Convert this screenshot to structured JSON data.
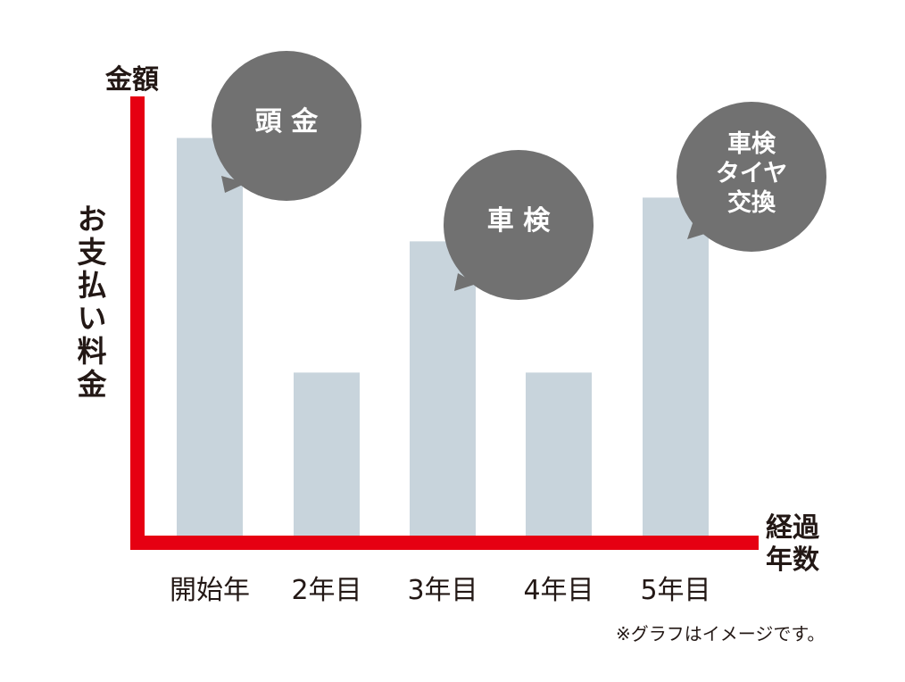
{
  "chart_data": {
    "type": "bar",
    "categories": [
      "開始年",
      "2年目",
      "3年目",
      "4年目",
      "5年目"
    ],
    "values": [
      100,
      41,
      74,
      41,
      85
    ],
    "ylim": [
      0,
      110
    ],
    "y_axis_title": "金額",
    "y_axis_label": "お支払い料金",
    "x_axis_title": [
      "経過",
      "年数"
    ],
    "annotations": [
      {
        "category": "開始年",
        "lines": [
          "頭 金"
        ]
      },
      {
        "category": "3年目",
        "lines": [
          "車 検"
        ]
      },
      {
        "category": "5年目",
        "lines": [
          "車検",
          "タイヤ",
          "交換"
        ]
      }
    ],
    "note": "※グラフはイメージです。",
    "bar_color": "#c8d4dc",
    "axis_color": "#e60012",
    "bubble_color": "#717171"
  }
}
